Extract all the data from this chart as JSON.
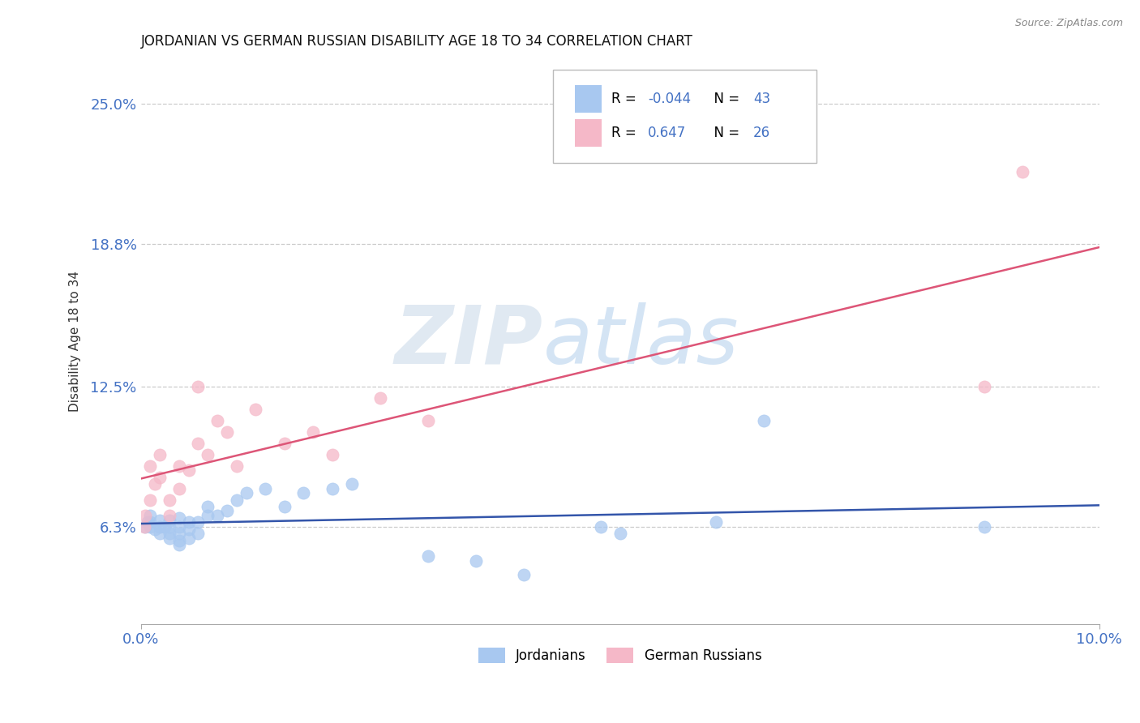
{
  "title": "JORDANIAN VS GERMAN RUSSIAN DISABILITY AGE 18 TO 34 CORRELATION CHART",
  "source": "Source: ZipAtlas.com",
  "ylabel": "Disability Age 18 to 34",
  "xlim": [
    0.0,
    0.1
  ],
  "ylim": [
    0.02,
    0.27
  ],
  "yticks": [
    0.063,
    0.125,
    0.188,
    0.25
  ],
  "ytick_labels": [
    "6.3%",
    "12.5%",
    "18.8%",
    "25.0%"
  ],
  "xticks": [
    0.0,
    0.1
  ],
  "xtick_labels": [
    "0.0%",
    "10.0%"
  ],
  "background_color": "#ffffff",
  "grid_color": "#cccccc",
  "legend_R1": "-0.044",
  "legend_N1": "43",
  "legend_R2": "0.647",
  "legend_N2": "26",
  "scatter_jordanian_x": [
    0.0005,
    0.0007,
    0.001,
    0.001,
    0.001,
    0.0015,
    0.002,
    0.002,
    0.002,
    0.0025,
    0.003,
    0.003,
    0.003,
    0.003,
    0.004,
    0.004,
    0.004,
    0.004,
    0.004,
    0.005,
    0.005,
    0.005,
    0.006,
    0.006,
    0.007,
    0.007,
    0.008,
    0.009,
    0.01,
    0.011,
    0.013,
    0.015,
    0.017,
    0.02,
    0.022,
    0.03,
    0.035,
    0.04,
    0.048,
    0.05,
    0.06,
    0.065,
    0.088
  ],
  "scatter_jordanian_y": [
    0.063,
    0.065,
    0.063,
    0.065,
    0.068,
    0.062,
    0.06,
    0.063,
    0.066,
    0.063,
    0.058,
    0.06,
    0.063,
    0.066,
    0.055,
    0.057,
    0.06,
    0.063,
    0.067,
    0.058,
    0.062,
    0.065,
    0.06,
    0.065,
    0.068,
    0.072,
    0.068,
    0.07,
    0.075,
    0.078,
    0.08,
    0.072,
    0.078,
    0.08,
    0.082,
    0.05,
    0.048,
    0.042,
    0.063,
    0.06,
    0.065,
    0.11,
    0.063
  ],
  "scatter_german_russian_x": [
    0.0004,
    0.0005,
    0.001,
    0.001,
    0.0015,
    0.002,
    0.002,
    0.003,
    0.003,
    0.004,
    0.004,
    0.005,
    0.006,
    0.006,
    0.007,
    0.008,
    0.009,
    0.01,
    0.012,
    0.015,
    0.018,
    0.02,
    0.025,
    0.03,
    0.088,
    0.092
  ],
  "scatter_german_russian_y": [
    0.063,
    0.068,
    0.075,
    0.09,
    0.082,
    0.085,
    0.095,
    0.068,
    0.075,
    0.08,
    0.09,
    0.088,
    0.1,
    0.125,
    0.095,
    0.11,
    0.105,
    0.09,
    0.115,
    0.1,
    0.105,
    0.095,
    0.12,
    0.11,
    0.125,
    0.22
  ],
  "jordanian_color": "#a8c8f0",
  "german_russian_color": "#f5b8c8",
  "jordanian_line_color": "#3355aa",
  "german_russian_line_color": "#dd5577",
  "legend_label_jordanian": "Jordanians",
  "legend_label_german_russian": "German Russians"
}
